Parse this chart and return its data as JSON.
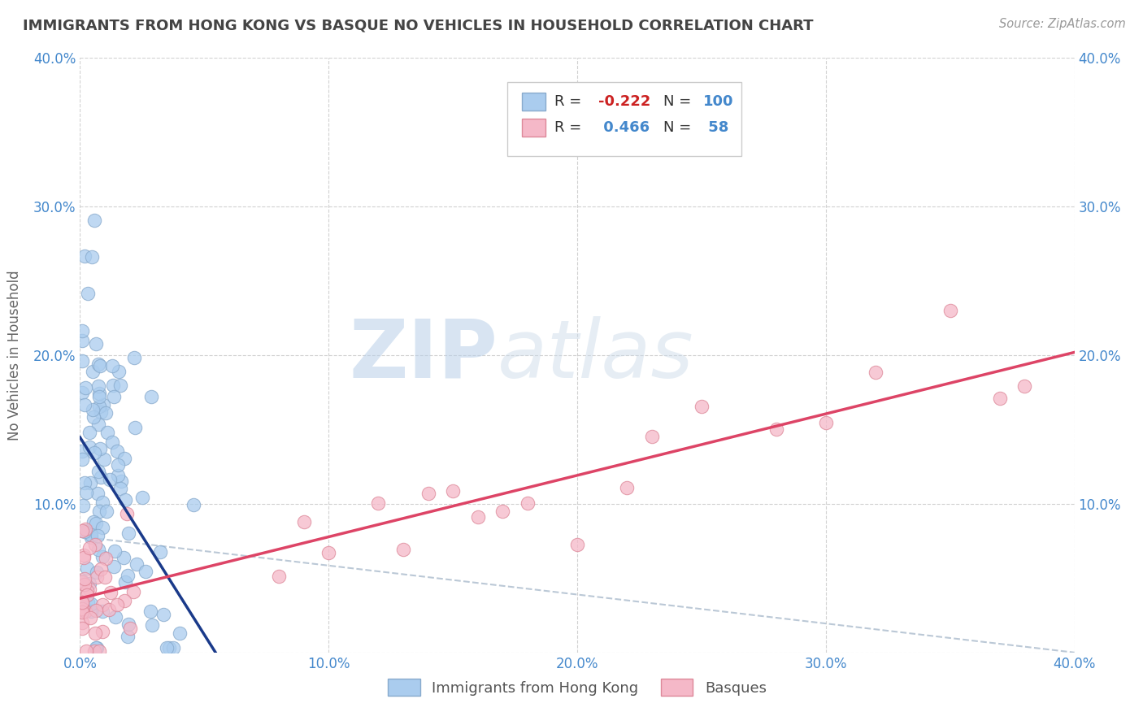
{
  "title": "IMMIGRANTS FROM HONG KONG VS BASQUE NO VEHICLES IN HOUSEHOLD CORRELATION CHART",
  "source": "Source: ZipAtlas.com",
  "ylabel": "No Vehicles in Household",
  "xlim": [
    0.0,
    0.4
  ],
  "ylim": [
    0.0,
    0.4
  ],
  "xticks": [
    0.0,
    0.1,
    0.2,
    0.3,
    0.4
  ],
  "yticks": [
    0.0,
    0.1,
    0.2,
    0.3,
    0.4
  ],
  "xticklabels": [
    "0.0%",
    "10.0%",
    "20.0%",
    "30.0%",
    "40.0%"
  ],
  "yticklabels": [
    "",
    "10.0%",
    "20.0%",
    "30.0%",
    "40.0%"
  ],
  "legend_labels": [
    "Immigrants from Hong Kong",
    "Basques"
  ],
  "blue_fill": "#aaccee",
  "blue_edge": "#88aacc",
  "pink_fill": "#f5b8c8",
  "pink_edge": "#dd8899",
  "blue_line_color": "#1a3a8a",
  "pink_line_color": "#dd4466",
  "dash_line_color": "#aabbcc",
  "R_blue": -0.222,
  "N_blue": 100,
  "R_pink": 0.466,
  "N_pink": 58,
  "watermark_zip": "ZIP",
  "watermark_atlas": "atlas",
  "background_color": "#ffffff",
  "grid_color": "#cccccc",
  "title_color": "#444444",
  "tick_color": "#4488cc",
  "ylabel_color": "#666666"
}
